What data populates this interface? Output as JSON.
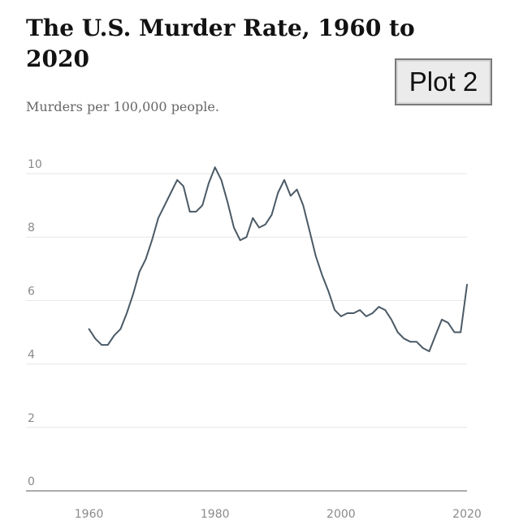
{
  "chart_data": {
    "type": "line",
    "title": "The U.S. Murder Rate, 1960 to 2020",
    "subtitle": "Murders per 100,000 people.",
    "xlabel": "",
    "ylabel": "",
    "xlim": [
      1950,
      2020
    ],
    "ylim": [
      0,
      10
    ],
    "x_ticks": [
      1960,
      1980,
      2000,
      2020
    ],
    "y_ticks": [
      0,
      2,
      4,
      6,
      8,
      10
    ],
    "grid": "horizontal",
    "color": "#4a5a66",
    "series": [
      {
        "x": [
          1960,
          1961,
          1962,
          1963,
          1964,
          1965,
          1966,
          1967,
          1968,
          1969,
          1970,
          1971,
          1972,
          1973,
          1974,
          1975,
          1976,
          1977,
          1978,
          1979,
          1980,
          1981,
          1982,
          1983,
          1984,
          1985,
          1986,
          1987,
          1988,
          1989,
          1990,
          1991,
          1992,
          1993,
          1994,
          1995,
          1996,
          1997,
          1998,
          1999,
          2000,
          2001,
          2002,
          2003,
          2004,
          2005,
          2006,
          2007,
          2008,
          2009,
          2010,
          2011,
          2012,
          2013,
          2014,
          2015,
          2016,
          2017,
          2018,
          2019,
          2020
        ],
        "y": [
          5.1,
          4.8,
          4.6,
          4.6,
          4.9,
          5.1,
          5.6,
          6.2,
          6.9,
          7.3,
          7.9,
          8.6,
          9.0,
          9.4,
          9.8,
          9.6,
          8.8,
          8.8,
          9.0,
          9.7,
          10.2,
          9.8,
          9.1,
          8.3,
          7.9,
          8.0,
          8.6,
          8.3,
          8.4,
          8.7,
          9.4,
          9.8,
          9.3,
          9.5,
          9.0,
          8.2,
          7.4,
          6.8,
          6.3,
          5.7,
          5.5,
          5.6,
          5.6,
          5.7,
          5.5,
          5.6,
          5.8,
          5.7,
          5.4,
          5.0,
          4.8,
          4.7,
          4.7,
          4.5,
          4.4,
          4.9,
          5.4,
          5.3,
          5.0,
          5.0,
          6.5
        ]
      }
    ]
  },
  "badge": {
    "label": "Plot 2"
  },
  "header": {
    "title_line1": "The U.S. Murder Rate, 1960 to",
    "title_line2": "2020"
  }
}
